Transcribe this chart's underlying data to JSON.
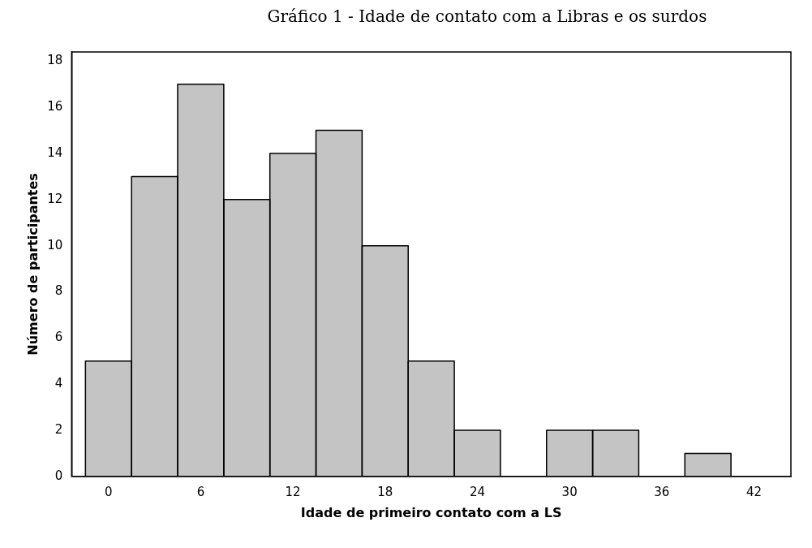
{
  "chart_data": {
    "type": "histogram",
    "title": "Gráfico 1 - Idade de contato com a Libras e os surdos",
    "xlabel": "Idade de primeiro contato com a LS",
    "ylabel": "Número de participantes",
    "bins": [
      -1.5,
      1.5,
      4.5,
      7.5,
      10.5,
      13.5,
      16.5,
      19.5,
      22.5,
      25.5,
      28.5,
      31.5,
      34.5,
      37.5,
      40.5
    ],
    "values": [
      5,
      13,
      17,
      12,
      14,
      15,
      10,
      5,
      2,
      0,
      2,
      2,
      0,
      1
    ],
    "color": "#c4c4c4",
    "xlim": [
      -2.4,
      44.4
    ],
    "xticks": [
      0,
      6,
      12,
      18,
      24,
      30,
      36,
      42
    ],
    "ylim": [
      0,
      18.4
    ],
    "yticks": [
      0,
      2,
      4,
      6,
      8,
      10,
      12,
      14,
      16,
      18
    ],
    "grid": false,
    "legend": false
  }
}
